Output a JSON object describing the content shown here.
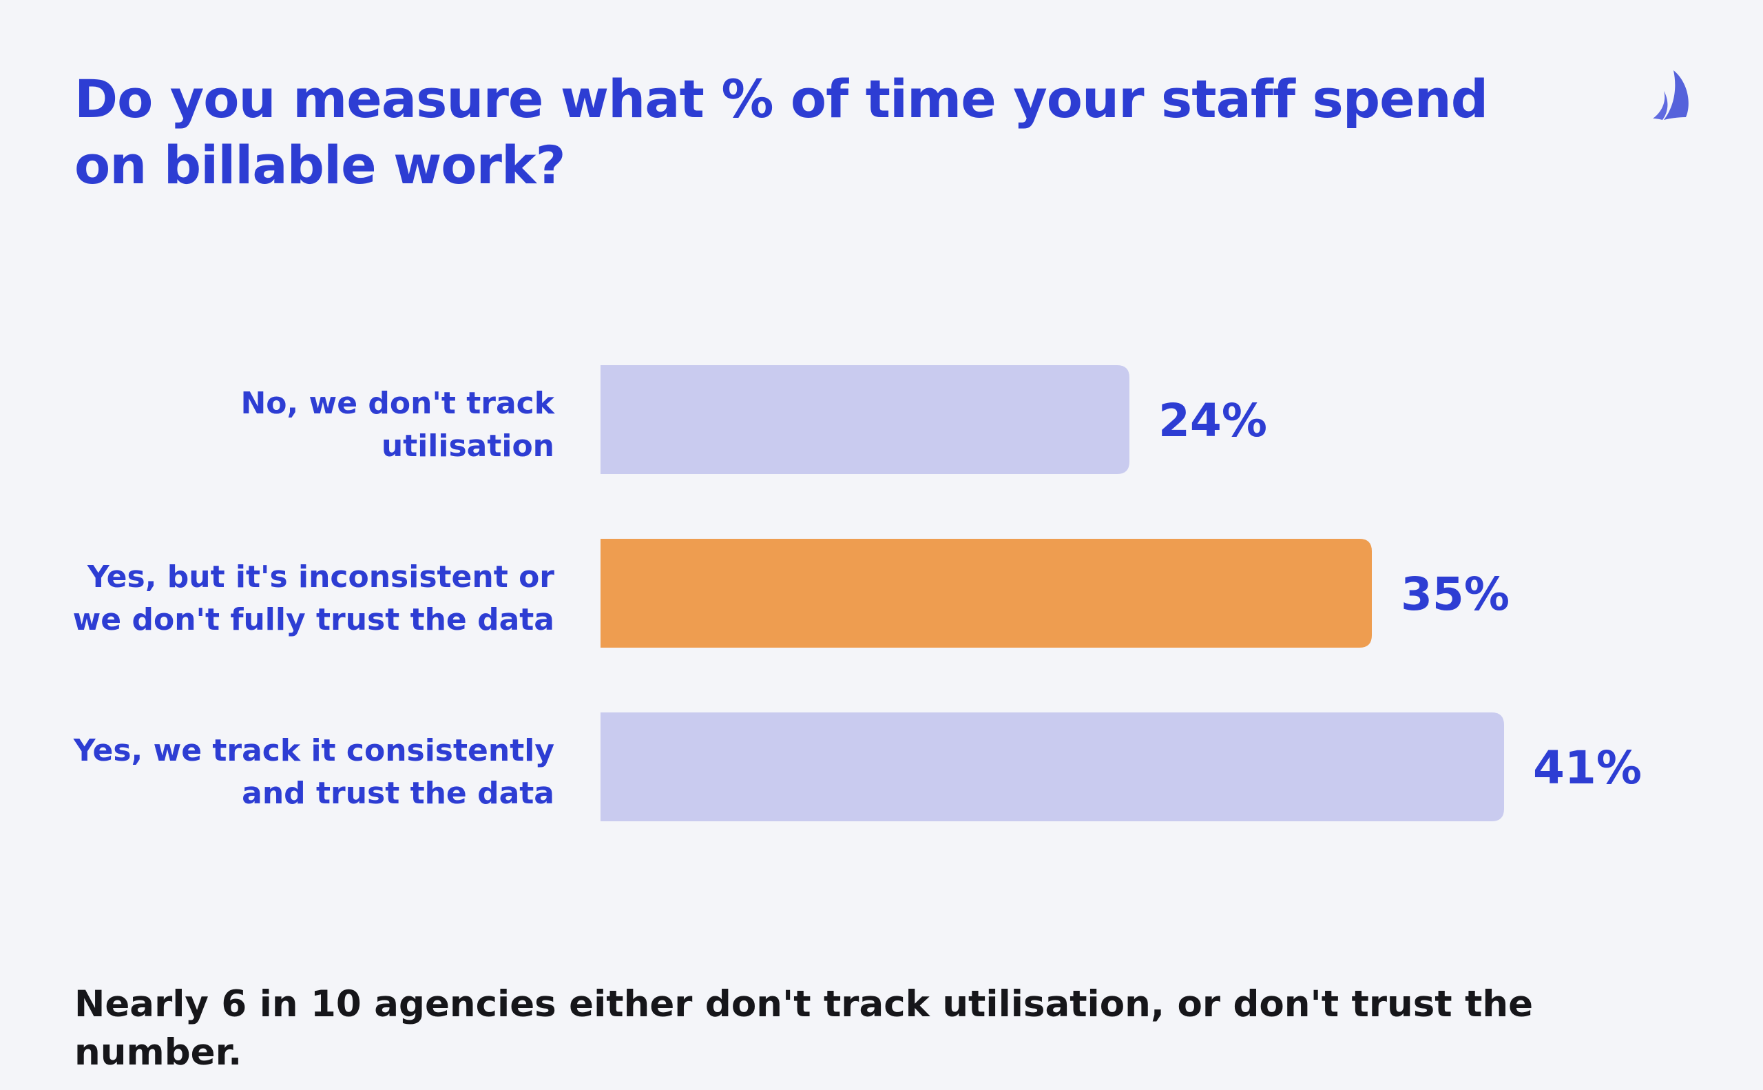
{
  "header": {
    "title": "Do you measure what % of time your staff spend on billable work?",
    "logo_icon": "sail-logo-icon"
  },
  "colors": {
    "accent": "#2d3dd3",
    "highlight_bar": "#ee9d50",
    "default_bar": "#c9cbef",
    "background": "#f4f5f9",
    "footer_text": "#16161a"
  },
  "chart_data": {
    "type": "bar",
    "orientation": "horizontal",
    "categories": [
      "No, we don't track utilisation",
      "Yes, but it's inconsistent or we don't fully trust the data",
      "Yes, we track it consistently and trust the data"
    ],
    "category_lines": [
      [
        "No, we don't track",
        "utilisation"
      ],
      [
        "Yes, but it's inconsistent or",
        "we don't fully trust the data"
      ],
      [
        "Yes, we track it consistently",
        "and trust the data"
      ]
    ],
    "values": [
      24,
      35,
      41
    ],
    "value_labels": [
      "24%",
      "35%",
      "41%"
    ],
    "highlighted_index": 1,
    "xlim": [
      0,
      41
    ],
    "grid": false,
    "legend": "none"
  },
  "footer": {
    "text": "Nearly 6 in 10 agencies either don't track utilisation, or don't trust the number."
  }
}
